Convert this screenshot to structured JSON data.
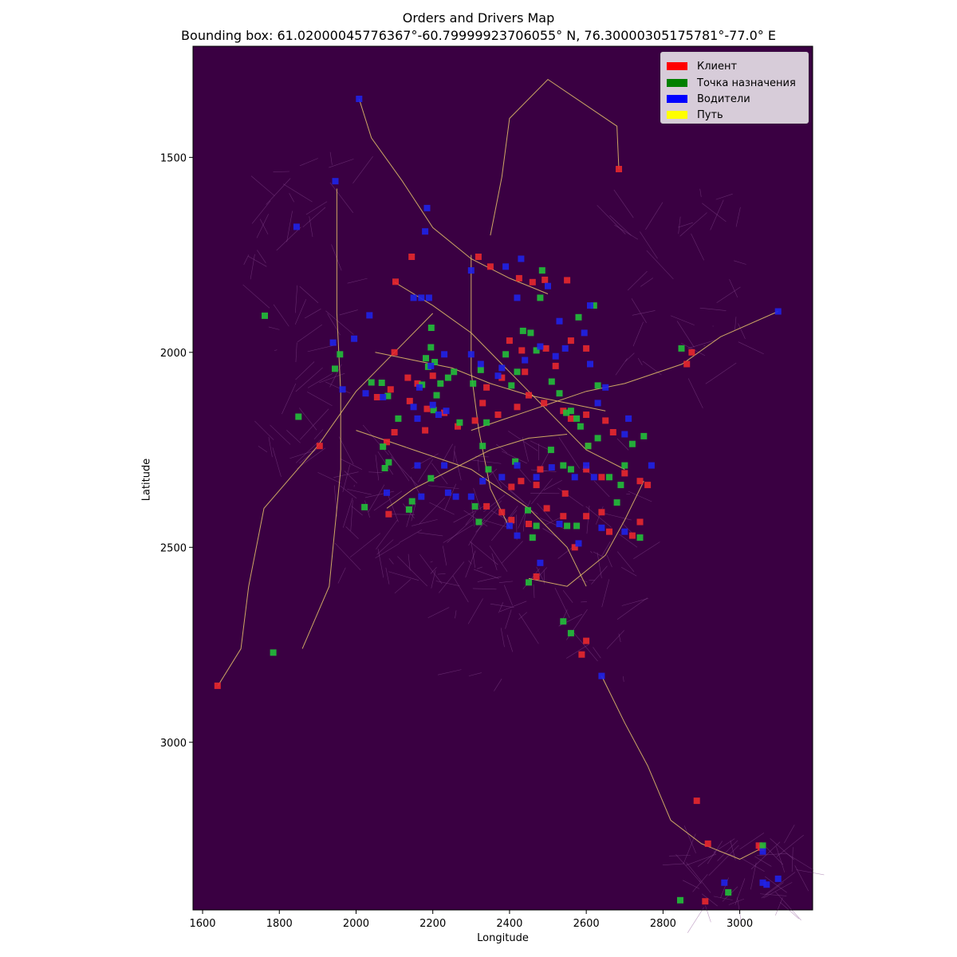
{
  "title_line1": "Orders and Drivers Map",
  "title_line2": "Bounding box: 61.02000045776367°-60.79999923706055° N, 76.30000305175781°-77.0° E",
  "chart_data": {
    "type": "scatter",
    "xlabel": "Longitude",
    "ylabel": "Latitude",
    "xlim": [
      1575,
      3190
    ],
    "ylim": [
      3430,
      1215
    ],
    "y_inverted": true,
    "x_ticks": [
      1600,
      1800,
      2000,
      2200,
      2400,
      2600,
      2800,
      3000
    ],
    "y_ticks": [
      1500,
      2000,
      2500,
      3000
    ],
    "background_color": "#3a0042",
    "legend_position": "top-right",
    "legend": [
      {
        "label": "Клиент",
        "color": "#ff0000"
      },
      {
        "label": "Точка назначения",
        "color": "#008000"
      },
      {
        "label": "Водители",
        "color": "#0000ff"
      },
      {
        "label": "Путь",
        "color": "#ffff00"
      }
    ],
    "series": [
      {
        "name": "Клиент",
        "color": "#e8282d",
        "points": [
          [
            2685,
            1530
          ],
          [
            1639,
            2855
          ],
          [
            1905,
            2240
          ],
          [
            2888,
            3150
          ],
          [
            2862,
            2030
          ],
          [
            2917,
            3260
          ],
          [
            2910,
            3408
          ],
          [
            2875,
            2000
          ],
          [
            2103,
            1819
          ],
          [
            2145,
            1755
          ],
          [
            2319,
            1755
          ],
          [
            2350,
            1780
          ],
          [
            2425,
            1810
          ],
          [
            2460,
            1820
          ],
          [
            2492,
            1814
          ],
          [
            2550,
            1815
          ],
          [
            2400,
            1970
          ],
          [
            2432,
            1995
          ],
          [
            2440,
            2050
          ],
          [
            2380,
            2065
          ],
          [
            2340,
            2090
          ],
          [
            2330,
            2130
          ],
          [
            2100,
            2000
          ],
          [
            2090,
            2095
          ],
          [
            2055,
            2115
          ],
          [
            2140,
            2125
          ],
          [
            2185,
            2145
          ],
          [
            2230,
            2155
          ],
          [
            2310,
            2175
          ],
          [
            2265,
            2190
          ],
          [
            2370,
            2160
          ],
          [
            2420,
            2140
          ],
          [
            2450,
            2110
          ],
          [
            2490,
            2130
          ],
          [
            2540,
            2150
          ],
          [
            2560,
            2170
          ],
          [
            2600,
            2160
          ],
          [
            2650,
            2175
          ],
          [
            2670,
            2205
          ],
          [
            2600,
            2300
          ],
          [
            2640,
            2320
          ],
          [
            2700,
            2310
          ],
          [
            2740,
            2330
          ],
          [
            2760,
            2340
          ],
          [
            2405,
            2345
          ],
          [
            2430,
            2330
          ],
          [
            2470,
            2340
          ],
          [
            2545,
            2362
          ],
          [
            2340,
            2395
          ],
          [
            2380,
            2410
          ],
          [
            2405,
            2430
          ],
          [
            2450,
            2440
          ],
          [
            2497,
            2400
          ],
          [
            2540,
            2420
          ],
          [
            2600,
            2420
          ],
          [
            2640,
            2410
          ],
          [
            2660,
            2460
          ],
          [
            2720,
            2470
          ],
          [
            2740,
            2435
          ],
          [
            2100,
            2205
          ],
          [
            2085,
            2415
          ],
          [
            2080,
            2230
          ],
          [
            2180,
            2200
          ],
          [
            2470,
            2575
          ],
          [
            2600,
            2740
          ],
          [
            2588,
            2775
          ],
          [
            2135,
            2065
          ],
          [
            2160,
            2080
          ],
          [
            2200,
            2060
          ],
          [
            2520,
            2035
          ],
          [
            2495,
            1990
          ],
          [
            2560,
            1970
          ],
          [
            2600,
            1990
          ],
          [
            2605,
            2240
          ],
          [
            2480,
            2300
          ],
          [
            2570,
            2500
          ],
          [
            3050,
            3265
          ],
          [
            3055,
            3270
          ]
        ]
      },
      {
        "name": "Точка назначения",
        "color": "#22bf3a",
        "points": [
          [
            1762,
            1906
          ],
          [
            1784,
            2770
          ],
          [
            1850,
            2165
          ],
          [
            1945,
            2042
          ],
          [
            1958,
            2005
          ],
          [
            2022,
            2397
          ],
          [
            2040,
            2077
          ],
          [
            2067,
            2078
          ],
          [
            2070,
            2242
          ],
          [
            2083,
            2112
          ],
          [
            2075,
            2297
          ],
          [
            2085,
            2282
          ],
          [
            2110,
            2170
          ],
          [
            2138,
            2403
          ],
          [
            2146,
            2382
          ],
          [
            2172,
            2083
          ],
          [
            2182,
            2015
          ],
          [
            2188,
            2037
          ],
          [
            2196,
            1937
          ],
          [
            2195,
            1987
          ],
          [
            2202,
            2148
          ],
          [
            2195,
            2323
          ],
          [
            2205,
            2025
          ],
          [
            2210,
            2110
          ],
          [
            2220,
            2080
          ],
          [
            2240,
            2065
          ],
          [
            2255,
            2050
          ],
          [
            2270,
            2180
          ],
          [
            2305,
            2080
          ],
          [
            2325,
            2045
          ],
          [
            2340,
            2180
          ],
          [
            2330,
            2240
          ],
          [
            2310,
            2395
          ],
          [
            2320,
            2435
          ],
          [
            2345,
            2300
          ],
          [
            2390,
            2005
          ],
          [
            2405,
            2085
          ],
          [
            2420,
            2050
          ],
          [
            2435,
            1945
          ],
          [
            2455,
            1950
          ],
          [
            2470,
            1995
          ],
          [
            2480,
            1860
          ],
          [
            2485,
            1790
          ],
          [
            2510,
            2075
          ],
          [
            2530,
            2105
          ],
          [
            2548,
            2155
          ],
          [
            2560,
            2150
          ],
          [
            2575,
            2170
          ],
          [
            2585,
            2190
          ],
          [
            2605,
            2240
          ],
          [
            2630,
            2220
          ],
          [
            2660,
            2320
          ],
          [
            2680,
            2385
          ],
          [
            2690,
            2340
          ],
          [
            2700,
            2290
          ],
          [
            2720,
            2235
          ],
          [
            2750,
            2215
          ],
          [
            2740,
            2475
          ],
          [
            2848,
            1990
          ],
          [
            2845,
            3405
          ],
          [
            2970,
            3385
          ],
          [
            3060,
            3265
          ],
          [
            2540,
            2690
          ],
          [
            2560,
            2720
          ],
          [
            2448,
            2405
          ],
          [
            2470,
            2445
          ],
          [
            2460,
            2475
          ],
          [
            2450,
            2590
          ],
          [
            2540,
            2290
          ],
          [
            2560,
            2300
          ],
          [
            2575,
            2445
          ],
          [
            2550,
            2445
          ],
          [
            2630,
            2085
          ],
          [
            2580,
            1910
          ],
          [
            2620,
            1880
          ],
          [
            2508,
            2250
          ],
          [
            2415,
            2280
          ]
        ]
      },
      {
        "name": "Водители",
        "color": "#1f22e8",
        "points": [
          [
            2008,
            1350
          ],
          [
            1946,
            1561
          ],
          [
            1845,
            1678
          ],
          [
            2185,
            1630
          ],
          [
            2180,
            1690
          ],
          [
            2300,
            1790
          ],
          [
            2430,
            1760
          ],
          [
            2420,
            1860
          ],
          [
            2390,
            1780
          ],
          [
            2150,
            1860
          ],
          [
            2170,
            1860
          ],
          [
            2190,
            1860
          ],
          [
            2035,
            1905
          ],
          [
            1995,
            1965
          ],
          [
            1940,
            1975
          ],
          [
            1965,
            2095
          ],
          [
            2025,
            2105
          ],
          [
            2070,
            2115
          ],
          [
            2150,
            2140
          ],
          [
            2200,
            2135
          ],
          [
            2215,
            2160
          ],
          [
            2235,
            2150
          ],
          [
            2160,
            2170
          ],
          [
            2165,
            2090
          ],
          [
            2195,
            2035
          ],
          [
            2230,
            2005
          ],
          [
            2300,
            2005
          ],
          [
            2325,
            2030
          ],
          [
            2370,
            2060
          ],
          [
            2380,
            2040
          ],
          [
            2440,
            2020
          ],
          [
            2480,
            1985
          ],
          [
            2545,
            1990
          ],
          [
            2595,
            1950
          ],
          [
            2610,
            2030
          ],
          [
            2650,
            2090
          ],
          [
            2700,
            2210
          ],
          [
            2770,
            2290
          ],
          [
            2600,
            2290
          ],
          [
            2620,
            2320
          ],
          [
            2570,
            2320
          ],
          [
            2510,
            2295
          ],
          [
            2470,
            2320
          ],
          [
            2420,
            2290
          ],
          [
            2380,
            2320
          ],
          [
            2330,
            2330
          ],
          [
            2300,
            2370
          ],
          [
            2240,
            2360
          ],
          [
            2260,
            2370
          ],
          [
            2230,
            2290
          ],
          [
            2160,
            2290
          ],
          [
            2080,
            2360
          ],
          [
            2170,
            2370
          ],
          [
            2400,
            2445
          ],
          [
            2420,
            2470
          ],
          [
            2530,
            2440
          ],
          [
            2580,
            2490
          ],
          [
            2640,
            2450
          ],
          [
            2700,
            2460
          ],
          [
            2520,
            2010
          ],
          [
            2710,
            2170
          ],
          [
            2640,
            2830
          ],
          [
            3100,
            1895
          ],
          [
            3060,
            3280
          ],
          [
            3100,
            3350
          ],
          [
            3060,
            3360
          ],
          [
            3070,
            3365
          ],
          [
            2960,
            3360
          ],
          [
            2480,
            2540
          ],
          [
            2500,
            1830
          ],
          [
            2530,
            1920
          ],
          [
            2610,
            1880
          ],
          [
            2630,
            2130
          ]
        ]
      }
    ]
  }
}
